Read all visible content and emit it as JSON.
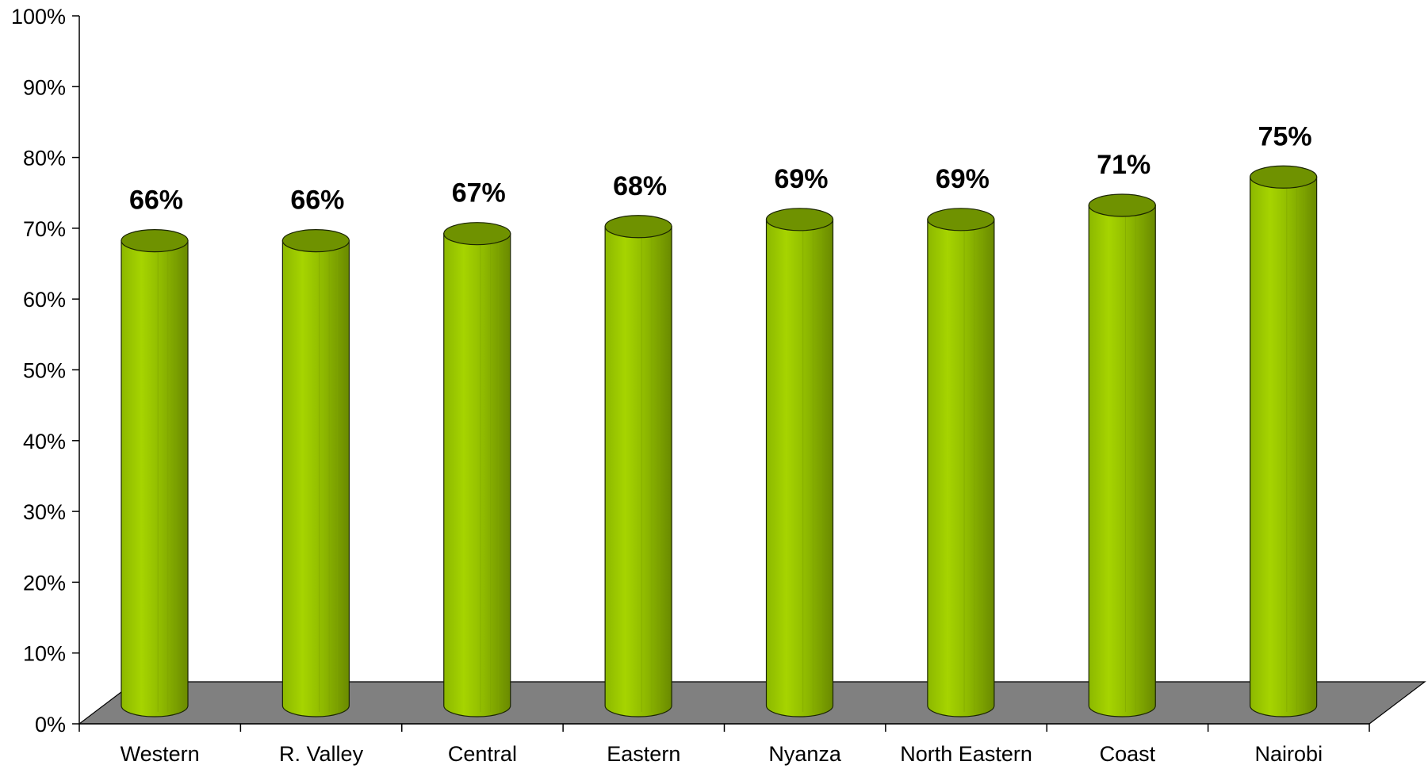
{
  "chart_data": {
    "type": "bar",
    "style": "3d-cylinder",
    "categories": [
      "Western",
      "R. Valley",
      "Central",
      "Eastern",
      "Nyanza",
      "North Eastern",
      "Coast",
      "Nairobi"
    ],
    "values": [
      66,
      66,
      67,
      68,
      69,
      69,
      71,
      75
    ],
    "data_labels": [
      "66%",
      "66%",
      "67%",
      "68%",
      "69%",
      "69%",
      "71%",
      "75%"
    ],
    "y_ticks": [
      "0%",
      "10%",
      "20%",
      "30%",
      "40%",
      "50%",
      "60%",
      "70%",
      "80%",
      "90%",
      "100%"
    ],
    "ylim": [
      0,
      100
    ],
    "grid": false,
    "legend": "none",
    "colors": {
      "bar_light": "#9bc800",
      "bar_dark": "#6b8c00",
      "bar_top": "#6f9200",
      "floor": "#808080",
      "axis": "#000000"
    }
  }
}
